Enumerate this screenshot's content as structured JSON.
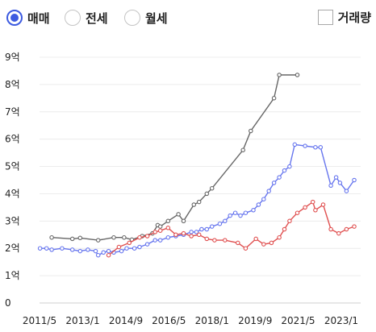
{
  "toolbar": {
    "options": [
      {
        "label": "매매",
        "selected": true
      },
      {
        "label": "전세",
        "selected": false
      },
      {
        "label": "월세",
        "selected": false
      }
    ],
    "volume_label": "거래량",
    "volume_checked": false
  },
  "colors": {
    "accent": "#3d5be0",
    "gray_series": "#666666",
    "blue_series": "#6675ee",
    "red_series": "#e05050"
  },
  "chart_data": {
    "type": "line",
    "y_tick_labels": [
      "0",
      "1억",
      "2억",
      "3억",
      "4억",
      "5억",
      "6억",
      "7억",
      "8억",
      "9억"
    ],
    "x_tick_labels": [
      "2011/5",
      "2013/1",
      "2014/9",
      "2016/5",
      "2018/1",
      "2019/9",
      "2021/5",
      "2023/1"
    ],
    "x_ticks": [
      2011.33,
      2013.0,
      2014.67,
      2016.33,
      2018.0,
      2019.67,
      2021.33,
      2023.0
    ],
    "xlim": [
      2011.33,
      2023.75
    ],
    "ylim": [
      0,
      9
    ],
    "ylabel_unit": "억",
    "grid": "horizontal",
    "legend": "none",
    "series": [
      {
        "color": "#666666",
        "points": [
          [
            2011.8,
            2.4
          ],
          [
            2012.6,
            2.35
          ],
          [
            2012.9,
            2.38
          ],
          [
            2013.6,
            2.3
          ],
          [
            2014.2,
            2.4
          ],
          [
            2014.6,
            2.4
          ],
          [
            2014.9,
            2.32
          ],
          [
            2015.3,
            2.45
          ],
          [
            2015.7,
            2.55
          ],
          [
            2015.9,
            2.85
          ],
          [
            2016.0,
            2.8
          ],
          [
            2016.3,
            3.0
          ],
          [
            2016.7,
            3.25
          ],
          [
            2016.9,
            3.0
          ],
          [
            2017.3,
            3.6
          ],
          [
            2017.5,
            3.7
          ],
          [
            2017.8,
            4.0
          ],
          [
            2018.0,
            4.2
          ],
          [
            2019.2,
            5.6
          ],
          [
            2019.5,
            6.3
          ],
          [
            2020.4,
            7.5
          ],
          [
            2020.6,
            8.35
          ],
          [
            2021.3,
            8.35
          ]
        ]
      },
      {
        "color": "#6675ee",
        "points": [
          [
            2011.35,
            2.0
          ],
          [
            2011.6,
            2.0
          ],
          [
            2011.8,
            1.95
          ],
          [
            2012.2,
            2.0
          ],
          [
            2012.6,
            1.95
          ],
          [
            2012.9,
            1.9
          ],
          [
            2013.2,
            1.95
          ],
          [
            2013.5,
            1.9
          ],
          [
            2013.6,
            1.75
          ],
          [
            2013.8,
            1.85
          ],
          [
            2014.0,
            1.9
          ],
          [
            2014.2,
            1.85
          ],
          [
            2014.5,
            1.9
          ],
          [
            2014.7,
            2.0
          ],
          [
            2015.0,
            2.0
          ],
          [
            2015.2,
            2.05
          ],
          [
            2015.5,
            2.15
          ],
          [
            2015.8,
            2.3
          ],
          [
            2016.0,
            2.3
          ],
          [
            2016.3,
            2.4
          ],
          [
            2016.6,
            2.45
          ],
          [
            2016.9,
            2.5
          ],
          [
            2017.2,
            2.6
          ],
          [
            2017.4,
            2.6
          ],
          [
            2017.6,
            2.7
          ],
          [
            2017.8,
            2.7
          ],
          [
            2018.0,
            2.8
          ],
          [
            2018.3,
            2.9
          ],
          [
            2018.5,
            3.0
          ],
          [
            2018.7,
            3.2
          ],
          [
            2018.9,
            3.3
          ],
          [
            2019.1,
            3.2
          ],
          [
            2019.3,
            3.3
          ],
          [
            2019.6,
            3.4
          ],
          [
            2019.8,
            3.6
          ],
          [
            2020.0,
            3.8
          ],
          [
            2020.2,
            4.1
          ],
          [
            2020.4,
            4.4
          ],
          [
            2020.6,
            4.6
          ],
          [
            2020.8,
            4.85
          ],
          [
            2021.0,
            5.0
          ],
          [
            2021.2,
            5.8
          ],
          [
            2021.6,
            5.75
          ],
          [
            2022.0,
            5.7
          ],
          [
            2022.2,
            5.7
          ],
          [
            2022.6,
            4.3
          ],
          [
            2022.8,
            4.6
          ],
          [
            2022.95,
            4.4
          ],
          [
            2023.2,
            4.1
          ],
          [
            2023.5,
            4.5
          ]
        ]
      },
      {
        "color": "#e05050",
        "points": [
          [
            2014.0,
            1.75
          ],
          [
            2014.4,
            2.05
          ],
          [
            2014.8,
            2.2
          ],
          [
            2015.2,
            2.4
          ],
          [
            2015.5,
            2.45
          ],
          [
            2015.8,
            2.6
          ],
          [
            2016.0,
            2.65
          ],
          [
            2016.3,
            2.75
          ],
          [
            2016.6,
            2.5
          ],
          [
            2016.9,
            2.55
          ],
          [
            2017.2,
            2.45
          ],
          [
            2017.5,
            2.5
          ],
          [
            2017.8,
            2.35
          ],
          [
            2018.1,
            2.3
          ],
          [
            2018.5,
            2.3
          ],
          [
            2019.0,
            2.2
          ],
          [
            2019.3,
            2.0
          ],
          [
            2019.7,
            2.35
          ],
          [
            2020.0,
            2.15
          ],
          [
            2020.3,
            2.2
          ],
          [
            2020.6,
            2.4
          ],
          [
            2020.8,
            2.7
          ],
          [
            2021.0,
            3.0
          ],
          [
            2021.3,
            3.3
          ],
          [
            2021.6,
            3.5
          ],
          [
            2021.9,
            3.7
          ],
          [
            2022.0,
            3.4
          ],
          [
            2022.3,
            3.6
          ],
          [
            2022.6,
            2.7
          ],
          [
            2022.9,
            2.55
          ],
          [
            2023.2,
            2.7
          ],
          [
            2023.5,
            2.8
          ]
        ]
      }
    ]
  }
}
